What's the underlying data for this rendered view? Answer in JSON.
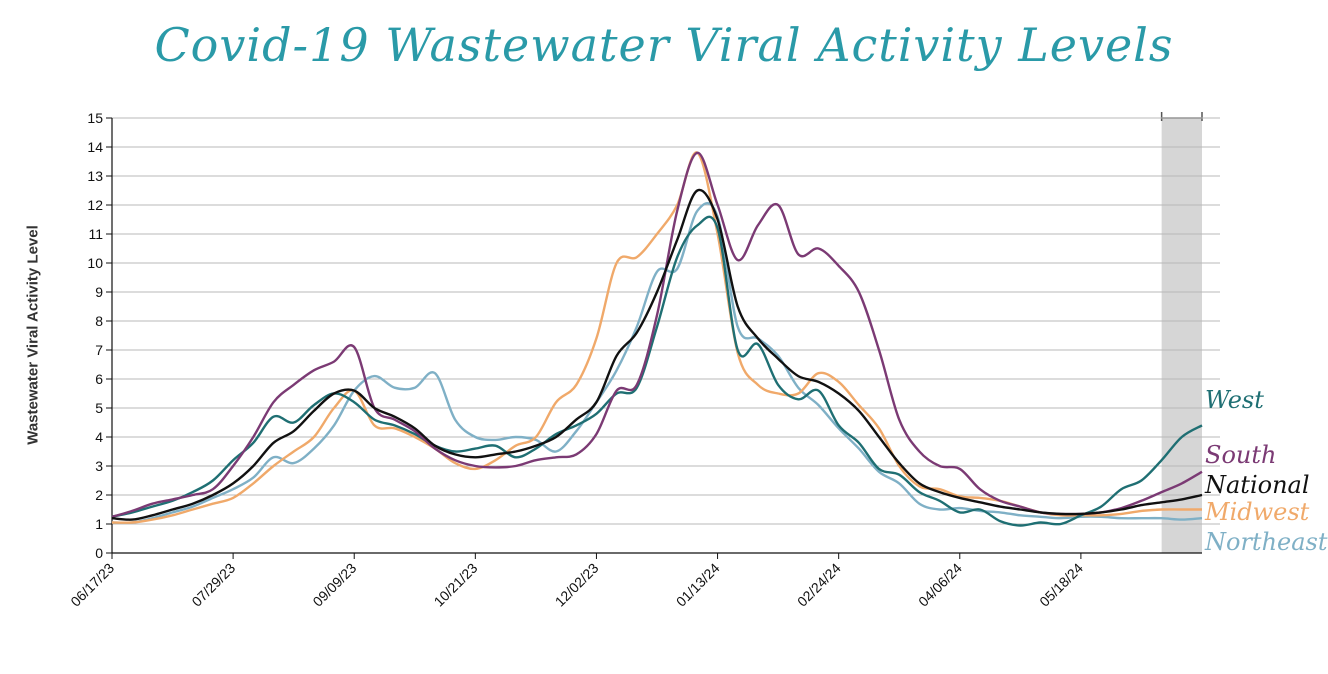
{
  "chart_data": {
    "type": "line",
    "title": "Covid-19 Wastewater Viral Activity Levels",
    "ylabel": "Wastewater Viral Activity Level",
    "ylim": [
      0,
      15
    ],
    "yticks": [
      0,
      1,
      2,
      3,
      4,
      5,
      6,
      7,
      8,
      9,
      10,
      11,
      12,
      13,
      14,
      15
    ],
    "xlim": [
      "2023-06-17",
      "2024-06-29"
    ],
    "xticks": [
      {
        "date": "2023-06-17",
        "label": "06/17/23"
      },
      {
        "date": "2023-07-29",
        "label": "07/29/23"
      },
      {
        "date": "2023-09-09",
        "label": "09/09/23"
      },
      {
        "date": "2023-10-21",
        "label": "10/21/23"
      },
      {
        "date": "2023-12-02",
        "label": "12/02/23"
      },
      {
        "date": "2024-01-13",
        "label": "01/13/24"
      },
      {
        "date": "2024-02-24",
        "label": "02/24/24"
      },
      {
        "date": "2024-04-06",
        "label": "04/06/24"
      },
      {
        "date": "2024-05-18",
        "label": "05/18/24"
      }
    ],
    "grid": true,
    "shaded_period": [
      "2024-06-15",
      "2024-06-29"
    ],
    "x": [
      "2023-06-17",
      "2023-06-24",
      "2023-07-01",
      "2023-07-08",
      "2023-07-15",
      "2023-07-22",
      "2023-07-29",
      "2023-08-05",
      "2023-08-12",
      "2023-08-19",
      "2023-08-26",
      "2023-09-02",
      "2023-09-09",
      "2023-09-16",
      "2023-09-23",
      "2023-09-30",
      "2023-10-07",
      "2023-10-14",
      "2023-10-21",
      "2023-10-28",
      "2023-11-04",
      "2023-11-11",
      "2023-11-18",
      "2023-11-25",
      "2023-12-02",
      "2023-12-09",
      "2023-12-16",
      "2023-12-23",
      "2023-12-30",
      "2024-01-06",
      "2024-01-13",
      "2024-01-20",
      "2024-01-27",
      "2024-02-03",
      "2024-02-10",
      "2024-02-17",
      "2024-02-24",
      "2024-03-02",
      "2024-03-09",
      "2024-03-16",
      "2024-03-23",
      "2024-03-30",
      "2024-04-06",
      "2024-04-13",
      "2024-04-20",
      "2024-04-27",
      "2024-05-04",
      "2024-05-11",
      "2024-05-18",
      "2024-05-25",
      "2024-06-01",
      "2024-06-08",
      "2024-06-15",
      "2024-06-22",
      "2024-06-29"
    ],
    "series": [
      {
        "name": "West",
        "color": "#1f6f73",
        "values": [
          1.25,
          1.4,
          1.6,
          1.8,
          2.1,
          2.5,
          3.2,
          3.8,
          4.7,
          4.5,
          5.1,
          5.5,
          5.2,
          4.6,
          4.4,
          4.1,
          3.7,
          3.5,
          3.6,
          3.7,
          3.3,
          3.6,
          4.1,
          4.4,
          4.8,
          5.5,
          5.7,
          7.8,
          10.2,
          11.3,
          11.2,
          7.0,
          7.2,
          5.8,
          5.3,
          5.6,
          4.4,
          3.8,
          2.9,
          2.7,
          2.1,
          1.8,
          1.4,
          1.5,
          1.1,
          0.95,
          1.05,
          1.0,
          1.3,
          1.6,
          2.2,
          2.5,
          3.2,
          4.0,
          4.4
        ]
      },
      {
        "name": "South",
        "color": "#7b3a74",
        "values": [
          1.25,
          1.45,
          1.7,
          1.85,
          2.0,
          2.2,
          3.0,
          4.0,
          5.2,
          5.8,
          6.3,
          6.6,
          7.1,
          5.0,
          4.6,
          4.2,
          3.6,
          3.2,
          3.0,
          2.95,
          3.0,
          3.2,
          3.3,
          3.4,
          4.1,
          5.6,
          5.8,
          8.2,
          11.8,
          13.8,
          12.0,
          10.1,
          11.3,
          12.0,
          10.3,
          10.5,
          9.9,
          9.0,
          7.0,
          4.6,
          3.5,
          3.0,
          2.9,
          2.2,
          1.8,
          1.6,
          1.4,
          1.35,
          1.35,
          1.4,
          1.55,
          1.8,
          2.1,
          2.4,
          2.8
        ]
      },
      {
        "name": "National",
        "color": "#111111",
        "values": [
          1.2,
          1.15,
          1.3,
          1.5,
          1.7,
          2.0,
          2.4,
          3.0,
          3.8,
          4.2,
          4.9,
          5.5,
          5.6,
          5.0,
          4.7,
          4.3,
          3.7,
          3.4,
          3.3,
          3.4,
          3.5,
          3.7,
          4.0,
          4.6,
          5.2,
          6.8,
          7.6,
          9.0,
          10.8,
          12.5,
          11.5,
          8.5,
          7.4,
          6.7,
          6.1,
          5.9,
          5.5,
          4.9,
          4.0,
          3.1,
          2.4,
          2.1,
          1.9,
          1.75,
          1.6,
          1.5,
          1.4,
          1.35,
          1.35,
          1.4,
          1.5,
          1.65,
          1.75,
          1.85,
          2.0
        ]
      },
      {
        "name": "Midwest",
        "color": "#f0a96a",
        "values": [
          1.05,
          1.05,
          1.15,
          1.3,
          1.5,
          1.7,
          1.9,
          2.4,
          3.0,
          3.5,
          4.0,
          5.0,
          5.6,
          4.4,
          4.3,
          4.0,
          3.6,
          3.1,
          2.9,
          3.2,
          3.7,
          4.0,
          5.2,
          5.8,
          7.4,
          10.0,
          10.2,
          11.0,
          12.0,
          13.8,
          11.0,
          6.9,
          5.8,
          5.5,
          5.5,
          6.2,
          5.9,
          5.1,
          4.3,
          3.0,
          2.3,
          2.2,
          1.95,
          1.9,
          1.8,
          1.6,
          1.4,
          1.3,
          1.3,
          1.3,
          1.35,
          1.45,
          1.5,
          1.5,
          1.5
        ]
      },
      {
        "name": "Northeast",
        "color": "#7fb0c6",
        "values": [
          1.05,
          1.05,
          1.2,
          1.4,
          1.6,
          1.9,
          2.2,
          2.6,
          3.3,
          3.1,
          3.6,
          4.4,
          5.6,
          6.1,
          5.7,
          5.7,
          6.2,
          4.6,
          4.0,
          3.9,
          4.0,
          3.9,
          3.5,
          4.2,
          5.2,
          6.3,
          7.8,
          9.7,
          9.8,
          11.8,
          11.6,
          7.8,
          7.4,
          6.8,
          5.7,
          5.1,
          4.3,
          3.6,
          2.8,
          2.4,
          1.7,
          1.5,
          1.55,
          1.45,
          1.4,
          1.3,
          1.25,
          1.2,
          1.25,
          1.25,
          1.2,
          1.2,
          1.2,
          1.15,
          1.2
        ]
      }
    ]
  }
}
